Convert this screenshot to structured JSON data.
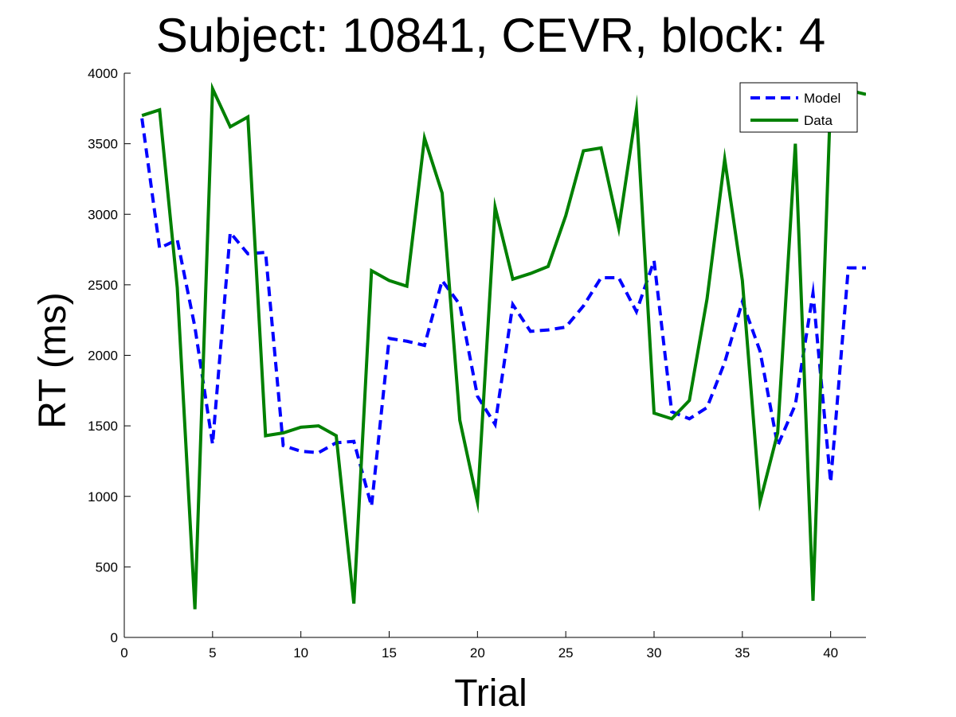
{
  "chart_data": {
    "type": "line",
    "title": "Subject: 10841, CEVR, block: 4",
    "xlabel": "Trial",
    "ylabel": "RT (ms)",
    "xlim": [
      0,
      42
    ],
    "ylim": [
      0,
      4000
    ],
    "xticks": [
      0,
      5,
      10,
      15,
      20,
      25,
      30,
      35,
      40
    ],
    "yticks": [
      0,
      500,
      1000,
      1500,
      2000,
      2500,
      3000,
      3500,
      4000
    ],
    "grid": false,
    "legend_position": "top-right",
    "x": [
      1,
      2,
      3,
      4,
      5,
      6,
      7,
      8,
      9,
      10,
      11,
      12,
      13,
      14,
      15,
      16,
      17,
      18,
      19,
      20,
      21,
      22,
      23,
      24,
      25,
      26,
      27,
      28,
      29,
      30,
      31,
      32,
      33,
      34,
      35,
      36,
      37,
      38,
      39,
      40,
      41,
      42
    ],
    "series": [
      {
        "name": "Model",
        "color": "#0000ff",
        "style": "dashed",
        "values": [
          3680,
          2760,
          2820,
          2200,
          1370,
          2870,
          2720,
          2730,
          1360,
          1320,
          1310,
          1380,
          1390,
          930,
          2120,
          2100,
          2070,
          2530,
          2360,
          1710,
          1510,
          2360,
          2170,
          2180,
          2200,
          2350,
          2550,
          2550,
          2310,
          2670,
          1600,
          1550,
          1630,
          1950,
          2380,
          2030,
          1360,
          1650,
          2440,
          1100,
          2620,
          2620
        ]
      },
      {
        "name": "Data",
        "color": "#008000",
        "style": "solid",
        "values": [
          3700,
          3740,
          2480,
          200,
          3890,
          3620,
          3690,
          1430,
          1450,
          1490,
          1500,
          1430,
          240,
          2600,
          2530,
          2490,
          3540,
          3150,
          1540,
          960,
          3050,
          2540,
          2580,
          2630,
          2990,
          3450,
          3470,
          2900,
          3740,
          1590,
          1550,
          1680,
          2400,
          3390,
          2530,
          960,
          1450,
          3500,
          260,
          3840,
          3880,
          3850
        ]
      }
    ]
  }
}
